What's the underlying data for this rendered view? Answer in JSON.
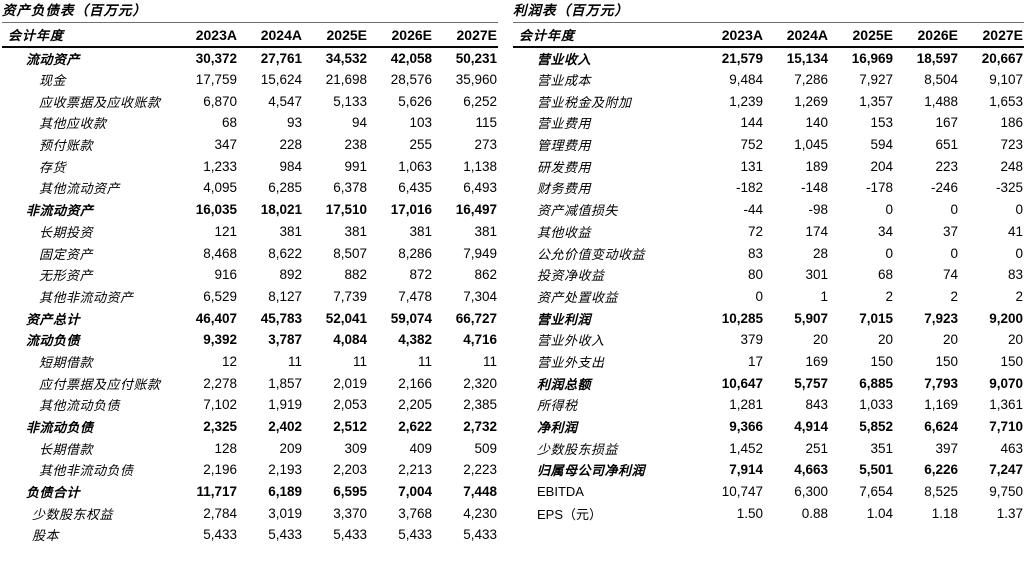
{
  "tables": [
    {
      "title": "资产负债表（百万元）",
      "header": [
        "会计年度",
        "2023A",
        "2024A",
        "2025E",
        "2026E",
        "2027E"
      ],
      "rows": [
        {
          "label": "流动资产",
          "bold": true,
          "indent": 1,
          "values": [
            "30,372",
            "27,761",
            "34,532",
            "42,058",
            "50,231"
          ]
        },
        {
          "label": "现金",
          "indent": 3,
          "values": [
            "17,759",
            "15,624",
            "21,698",
            "28,576",
            "35,960"
          ]
        },
        {
          "label": "应收票据及应收账款",
          "indent": 3,
          "values": [
            "6,870",
            "4,547",
            "5,133",
            "5,626",
            "6,252"
          ]
        },
        {
          "label": "其他应收款",
          "indent": 3,
          "values": [
            "68",
            "93",
            "94",
            "103",
            "115"
          ]
        },
        {
          "label": "预付账款",
          "indent": 3,
          "values": [
            "347",
            "228",
            "238",
            "255",
            "273"
          ]
        },
        {
          "label": "存货",
          "indent": 3,
          "values": [
            "1,233",
            "984",
            "991",
            "1,063",
            "1,138"
          ]
        },
        {
          "label": "其他流动资产",
          "indent": 3,
          "values": [
            "4,095",
            "6,285",
            "6,378",
            "6,435",
            "6,493"
          ]
        },
        {
          "label": "非流动资产",
          "bold": true,
          "indent": 1,
          "values": [
            "16,035",
            "18,021",
            "17,510",
            "17,016",
            "16,497"
          ]
        },
        {
          "label": "长期投资",
          "indent": 3,
          "values": [
            "121",
            "381",
            "381",
            "381",
            "381"
          ]
        },
        {
          "label": "固定资产",
          "indent": 3,
          "values": [
            "8,468",
            "8,622",
            "8,507",
            "8,286",
            "7,949"
          ]
        },
        {
          "label": "无形资产",
          "indent": 3,
          "values": [
            "916",
            "892",
            "882",
            "872",
            "862"
          ]
        },
        {
          "label": "其他非流动资产",
          "indent": 3,
          "values": [
            "6,529",
            "8,127",
            "7,739",
            "7,478",
            "7,304"
          ]
        },
        {
          "label": "资产总计",
          "bold": true,
          "indent": 1,
          "values": [
            "46,407",
            "45,783",
            "52,041",
            "59,074",
            "66,727"
          ]
        },
        {
          "label": "流动负债",
          "bold": true,
          "indent": 1,
          "values": [
            "9,392",
            "3,787",
            "4,084",
            "4,382",
            "4,716"
          ]
        },
        {
          "label": "短期借款",
          "indent": 3,
          "values": [
            "12",
            "11",
            "11",
            "11",
            "11"
          ]
        },
        {
          "label": "应付票据及应付账款",
          "indent": 3,
          "values": [
            "2,278",
            "1,857",
            "2,019",
            "2,166",
            "2,320"
          ]
        },
        {
          "label": "其他流动负债",
          "indent": 3,
          "values": [
            "7,102",
            "1,919",
            "2,053",
            "2,205",
            "2,385"
          ]
        },
        {
          "label": "非流动负债",
          "bold": true,
          "indent": 1,
          "values": [
            "2,325",
            "2,402",
            "2,512",
            "2,622",
            "2,732"
          ]
        },
        {
          "label": "长期借款",
          "indent": 3,
          "values": [
            "128",
            "209",
            "309",
            "409",
            "509"
          ]
        },
        {
          "label": "其他非流动负债",
          "indent": 3,
          "values": [
            "2,196",
            "2,193",
            "2,203",
            "2,213",
            "2,223"
          ]
        },
        {
          "label": "负债合计",
          "bold": true,
          "indent": 1,
          "values": [
            "11,717",
            "6,189",
            "6,595",
            "7,004",
            "7,448"
          ]
        },
        {
          "label": "少数股东权益",
          "indent": 2,
          "values": [
            "2,784",
            "3,019",
            "3,370",
            "3,768",
            "4,230"
          ]
        },
        {
          "label": "股本",
          "indent": 2,
          "values": [
            "5,433",
            "5,433",
            "5,433",
            "5,433",
            "5,433"
          ]
        }
      ]
    },
    {
      "title": "利润表（百万元）",
      "header": [
        "会计年度",
        "2023A",
        "2024A",
        "2025E",
        "2026E",
        "2027E"
      ],
      "rows": [
        {
          "label": "营业收入",
          "bold": true,
          "indent": 1,
          "values": [
            "21,579",
            "15,134",
            "16,969",
            "18,597",
            "20,667"
          ]
        },
        {
          "label": "营业成本",
          "indent": 1,
          "values": [
            "9,484",
            "7,286",
            "7,927",
            "8,504",
            "9,107"
          ]
        },
        {
          "label": "营业税金及附加",
          "indent": 1,
          "values": [
            "1,239",
            "1,269",
            "1,357",
            "1,488",
            "1,653"
          ]
        },
        {
          "label": "营业费用",
          "indent": 1,
          "values": [
            "144",
            "140",
            "153",
            "167",
            "186"
          ]
        },
        {
          "label": "管理费用",
          "indent": 1,
          "values": [
            "752",
            "1,045",
            "594",
            "651",
            "723"
          ]
        },
        {
          "label": "研发费用",
          "indent": 1,
          "values": [
            "131",
            "189",
            "204",
            "223",
            "248"
          ]
        },
        {
          "label": "财务费用",
          "indent": 1,
          "values": [
            "-182",
            "-148",
            "-178",
            "-246",
            "-325"
          ]
        },
        {
          "label": "资产减值损失",
          "indent": 1,
          "values": [
            "-44",
            "-98",
            "0",
            "0",
            "0"
          ]
        },
        {
          "label": "其他收益",
          "indent": 1,
          "values": [
            "72",
            "174",
            "34",
            "37",
            "41"
          ]
        },
        {
          "label": "公允价值变动收益",
          "indent": 1,
          "values": [
            "83",
            "28",
            "0",
            "0",
            "0"
          ]
        },
        {
          "label": "投资净收益",
          "indent": 1,
          "values": [
            "80",
            "301",
            "68",
            "74",
            "83"
          ]
        },
        {
          "label": "资产处置收益",
          "indent": 1,
          "values": [
            "0",
            "1",
            "2",
            "2",
            "2"
          ]
        },
        {
          "label": "营业利润",
          "bold": true,
          "indent": 1,
          "values": [
            "10,285",
            "5,907",
            "7,015",
            "7,923",
            "9,200"
          ]
        },
        {
          "label": "营业外收入",
          "indent": 1,
          "values": [
            "379",
            "20",
            "20",
            "20",
            "20"
          ]
        },
        {
          "label": "营业外支出",
          "indent": 1,
          "values": [
            "17",
            "169",
            "150",
            "150",
            "150"
          ]
        },
        {
          "label": "利润总额",
          "bold": true,
          "indent": 1,
          "values": [
            "10,647",
            "5,757",
            "6,885",
            "7,793",
            "9,070"
          ]
        },
        {
          "label": "所得税",
          "indent": 1,
          "values": [
            "1,281",
            "843",
            "1,033",
            "1,169",
            "1,361"
          ]
        },
        {
          "label": "净利润",
          "bold": true,
          "indent": 1,
          "values": [
            "9,366",
            "4,914",
            "5,852",
            "6,624",
            "7,710"
          ]
        },
        {
          "label": "少数股东损益",
          "indent": 1,
          "values": [
            "1,452",
            "251",
            "351",
            "397",
            "463"
          ]
        },
        {
          "label": "归属母公司净利润",
          "bold": true,
          "indent": 1,
          "values": [
            "7,914",
            "4,663",
            "5,501",
            "6,226",
            "7,247"
          ]
        },
        {
          "label": "EBITDA",
          "latin": true,
          "indent": 1,
          "values": [
            "10,747",
            "6,300",
            "7,654",
            "8,525",
            "9,750"
          ]
        },
        {
          "label": "EPS（元）",
          "latin": true,
          "indent": 1,
          "values": [
            "1.50",
            "0.88",
            "1.04",
            "1.18",
            "1.37"
          ]
        }
      ]
    }
  ]
}
